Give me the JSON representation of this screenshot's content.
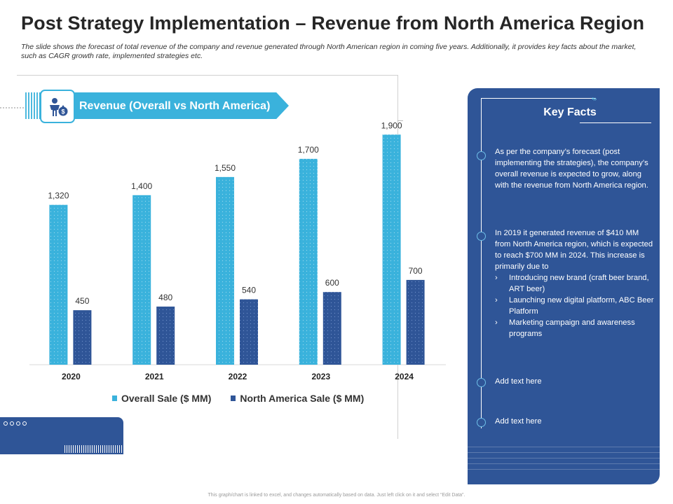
{
  "title": "Post Strategy Implementation – Revenue from North America Region",
  "subtitle": "The slide shows the forecast of total revenue of the company and revenue generated through North American region in coming five years. Additionally, it provides key facts about the market, such as CAGR growth rate, implemented strategies etc.",
  "ribbon": {
    "label": "Revenue (Overall vs North America)",
    "icon": "user-money-icon"
  },
  "colors": {
    "overall": "#3ab2dc",
    "north_america": "#2f5597",
    "panel": "#2f5597"
  },
  "chart_data": {
    "type": "bar",
    "title": "Revenue (Overall vs North America)",
    "categories": [
      "2020",
      "2021",
      "2022",
      "2023",
      "2024"
    ],
    "series": [
      {
        "name": "Overall Sale ($ MM)",
        "values": [
          1320,
          1400,
          1550,
          1700,
          1900
        ],
        "labels": [
          "1,320",
          "1,400",
          "1,550",
          "1,700",
          "1,900"
        ]
      },
      {
        "name": "North America Sale ($ MM)",
        "values": [
          450,
          480,
          540,
          600,
          700
        ],
        "labels": [
          "450",
          "480",
          "540",
          "600",
          "700"
        ]
      }
    ],
    "xlabel": "",
    "ylabel": "",
    "ylim": [
      0,
      2000
    ],
    "grid": false,
    "legend": "bottom"
  },
  "key_facts": {
    "title": "Key Facts",
    "fact1": "As per the company’s forecast (post implementing the strategies), the company’s overall revenue is expected to grow, along with the revenue from North America region.",
    "fact2_intro": "In 2019 it generated revenue of $410 MM from North America region, which is expected to reach $700 MM in 2024. This increase is primarily due to",
    "fact2_bullets": [
      "Introducing new brand (craft beer brand, ART beer)",
      "Launching new digital platform, ABC Beer Platform",
      "Marketing campaign and awareness programs"
    ],
    "fact3": "Add text here",
    "fact4": "Add text here"
  },
  "footer": "This graph/chart is linked to excel, and changes automatically based on data. Just left click on it and select “Edit Data”."
}
